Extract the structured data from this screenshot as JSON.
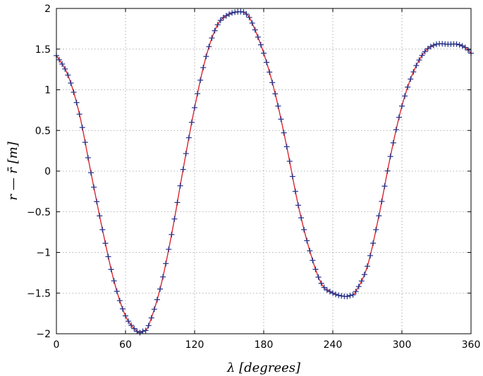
{
  "chart_data": {
    "type": "line",
    "title": "",
    "xlabel": "λ [degrees]",
    "ylabel": "r — r̄ [m]",
    "xlim": [
      0,
      360
    ],
    "ylim": [
      -2,
      2
    ],
    "xticks": [
      0,
      60,
      120,
      180,
      240,
      300,
      360
    ],
    "yticks": [
      -2,
      -1.5,
      -1,
      -0.5,
      0,
      0.5,
      1,
      1.5,
      2
    ],
    "xtick_labels": [
      "0",
      "60",
      "120",
      "180",
      "240",
      "300",
      "360"
    ],
    "ytick_labels": [
      "−2",
      "−1.5",
      "−1",
      "−0.5",
      "0",
      "0.5",
      "1",
      "1.5",
      "2"
    ],
    "grid": true,
    "series": [
      {
        "style": "line",
        "color": "#d9282f",
        "x": [
          0,
          10,
          20,
          30,
          40,
          50,
          60,
          70,
          75,
          80,
          90,
          100,
          110,
          120,
          130,
          140,
          150,
          160,
          165,
          170,
          180,
          190,
          200,
          210,
          220,
          230,
          240,
          250,
          255,
          260,
          270,
          280,
          290,
          300,
          310,
          320,
          330,
          340,
          348,
          355,
          360
        ],
        "y": [
          1.42,
          1.18,
          0.7,
          -0.02,
          -0.72,
          -1.35,
          -1.78,
          -1.97,
          -1.97,
          -1.9,
          -1.45,
          -0.78,
          0.02,
          0.78,
          1.41,
          1.8,
          1.93,
          1.96,
          1.93,
          1.82,
          1.45,
          0.95,
          0.3,
          -0.42,
          -0.98,
          -1.38,
          -1.5,
          -1.54,
          -1.53,
          -1.48,
          -1.17,
          -0.55,
          0.18,
          0.8,
          1.22,
          1.47,
          1.56,
          1.56,
          1.56,
          1.52,
          1.45
        ]
      },
      {
        "style": "markers",
        "marker": "+",
        "color": "#1f2f8a",
        "x": [
          0,
          10,
          20,
          30,
          40,
          50,
          60,
          70,
          75,
          80,
          90,
          100,
          110,
          120,
          130,
          140,
          150,
          160,
          165,
          170,
          180,
          190,
          200,
          210,
          220,
          230,
          240,
          250,
          255,
          260,
          270,
          280,
          290,
          300,
          310,
          320,
          330,
          340,
          348,
          355,
          360
        ],
        "y": [
          1.42,
          1.18,
          0.7,
          -0.02,
          -0.72,
          -1.35,
          -1.78,
          -1.97,
          -1.97,
          -1.9,
          -1.45,
          -0.78,
          0.02,
          0.78,
          1.41,
          1.8,
          1.93,
          1.96,
          1.93,
          1.82,
          1.45,
          0.95,
          0.3,
          -0.42,
          -0.98,
          -1.38,
          -1.5,
          -1.54,
          -1.53,
          -1.48,
          -1.17,
          -0.55,
          0.18,
          0.8,
          1.22,
          1.47,
          1.56,
          1.56,
          1.56,
          1.52,
          1.45
        ]
      }
    ]
  }
}
